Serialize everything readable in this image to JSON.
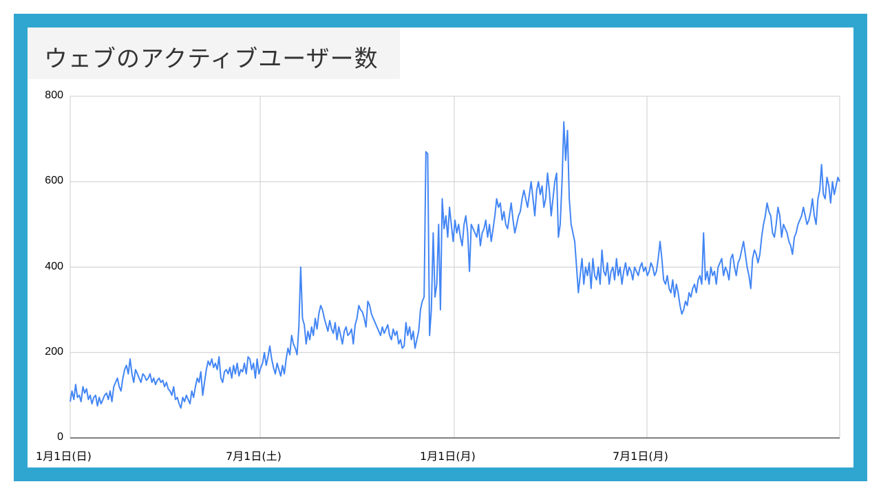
{
  "title": "ウェブのアクティブユーザー数",
  "colors": {
    "frame": "#2fa6cf",
    "line": "#4285f4",
    "grid": "#cccccc",
    "axis": "#333333",
    "title_bg": "#f4f4f4"
  },
  "chart_data": {
    "type": "line",
    "title": "ウェブのアクティブユーザー数",
    "xlabel": "",
    "ylabel": "",
    "ylim": [
      0,
      800
    ],
    "yticks": [
      0,
      200,
      400,
      600,
      800
    ],
    "xticks": [
      "1月1日(日)",
      "7月1日(土)",
      "1月1日(月)",
      "7月1日(月)"
    ],
    "grid": true,
    "legend": "none",
    "series": [
      {
        "name": "アクティブユーザー数",
        "x_start": "1月1日(日)",
        "step_days": 2.6,
        "values": [
          85,
          110,
          90,
          125,
          95,
          100,
          85,
          120,
          105,
          115,
          90,
          100,
          80,
          95,
          100,
          75,
          95,
          80,
          90,
          100,
          105,
          90,
          110,
          85,
          120,
          130,
          140,
          120,
          110,
          140,
          160,
          170,
          150,
          185,
          150,
          130,
          160,
          150,
          140,
          130,
          150,
          145,
          135,
          140,
          150,
          130,
          140,
          125,
          135,
          140,
          130,
          135,
          120,
          130,
          115,
          110,
          100,
          120,
          90,
          95,
          80,
          70,
          95,
          85,
          100,
          90,
          80,
          110,
          95,
          120,
          140,
          130,
          155,
          100,
          130,
          160,
          180,
          170,
          185,
          165,
          175,
          160,
          190,
          140,
          130,
          155,
          160,
          150,
          165,
          140,
          170,
          150,
          175,
          145,
          160,
          155,
          175,
          150,
          190,
          185,
          160,
          175,
          140,
          185,
          150,
          165,
          175,
          200,
          170,
          190,
          215,
          185,
          165,
          150,
          175,
          160,
          145,
          170,
          150,
          185,
          210,
          195,
          240,
          220,
          210,
          195,
          260,
          400,
          280,
          265,
          220,
          250,
          230,
          260,
          240,
          280,
          255,
          290,
          310,
          300,
          280,
          265,
          250,
          275,
          255,
          245,
          270,
          230,
          260,
          240,
          220,
          250,
          260,
          240,
          245,
          255,
          220,
          265,
          280,
          310,
          300,
          295,
          280,
          260,
          320,
          310,
          290,
          280,
          270,
          260,
          250,
          240,
          260,
          245,
          255,
          265,
          240,
          230,
          255,
          240,
          250,
          220,
          230,
          210,
          215,
          270,
          240,
          260,
          230,
          250,
          210,
          230,
          250,
          300,
          320,
          330,
          670,
          665,
          240,
          300,
          480,
          330,
          360,
          500,
          300,
          560,
          490,
          520,
          470,
          540,
          500,
          460,
          510,
          480,
          500,
          470,
          450,
          500,
          520,
          480,
          390,
          500,
          490,
          480,
          470,
          500,
          450,
          480,
          490,
          510,
          470,
          500,
          460,
          490,
          520,
          560,
          540,
          550,
          510,
          530,
          500,
          490,
          520,
          550,
          510,
          480,
          500,
          520,
          530,
          560,
          580,
          560,
          540,
          570,
          600,
          560,
          520,
          580,
          600,
          570,
          590,
          540,
          560,
          620,
          580,
          520,
          560,
          600,
          620,
          470,
          500,
          600,
          740,
          650,
          720,
          560,
          500,
          480,
          460,
          400,
          340,
          380,
          420,
          360,
          400,
          380,
          410,
          350,
          420,
          380,
          370,
          400,
          360,
          440,
          390,
          380,
          410,
          360,
          390,
          400,
          370,
          420,
          380,
          400,
          360,
          390,
          410,
          380,
          400,
          390,
          370,
          400,
          390,
          380,
          400,
          410,
          390,
          400,
          380,
          390,
          410,
          400,
          380,
          390,
          420,
          460,
          420,
          370,
          360,
          380,
          350,
          340,
          370,
          330,
          360,
          340,
          310,
          290,
          300,
          320,
          310,
          340,
          330,
          350,
          360,
          340,
          370,
          380,
          360,
          480,
          370,
          390,
          360,
          400,
          380,
          390,
          360,
          400,
          410,
          420,
          380,
          400,
          390,
          370,
          420,
          430,
          400,
          380,
          410,
          420,
          440,
          460,
          430,
          400,
          380,
          350,
          420,
          440,
          430,
          410,
          430,
          470,
          500,
          520,
          550,
          530,
          520,
          480,
          470,
          500,
          540,
          520,
          470,
          500,
          490,
          480,
          460,
          450,
          430,
          470,
          480,
          500,
          510,
          520,
          540,
          520,
          500,
          510,
          530,
          560,
          520,
          500,
          560,
          580,
          640,
          570,
          560,
          610,
          590,
          550,
          600,
          570,
          590,
          610,
          600
        ]
      }
    ]
  }
}
